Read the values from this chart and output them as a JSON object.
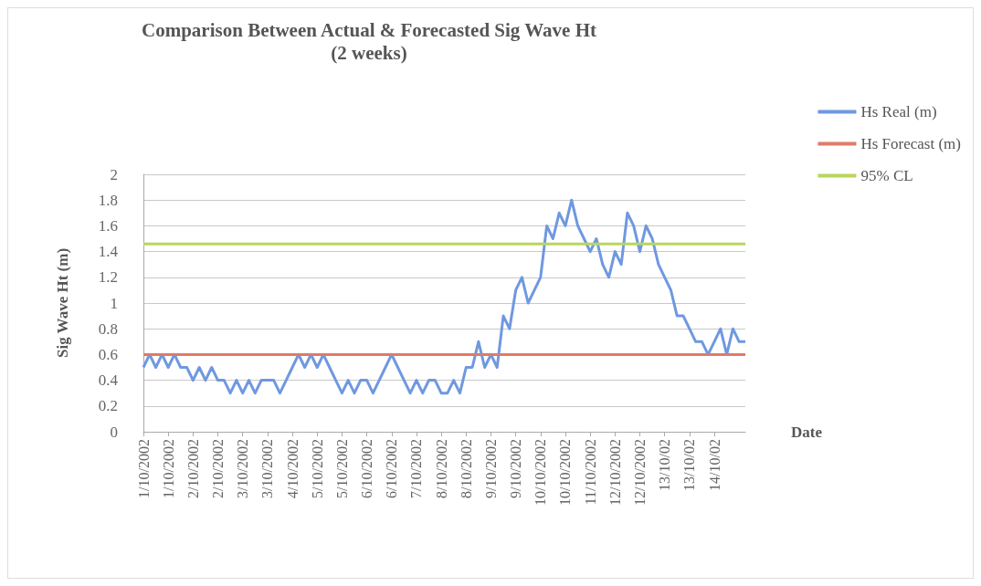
{
  "chart_data": {
    "type": "line",
    "title": "Comparison Between Actual & Forecasted Sig Wave Ht",
    "subtitle": "(2 weeks)",
    "xlabel": "Date",
    "ylabel": "Sig Wave Ht (m)",
    "categories": [
      "1/10/2002",
      null,
      null,
      null,
      "1/10/2002",
      null,
      null,
      null,
      "2/10/2002",
      null,
      null,
      null,
      "2/10/2002",
      null,
      null,
      null,
      "3/10/2002",
      null,
      null,
      null,
      "3/10/2002",
      null,
      null,
      null,
      "4/10/2002",
      null,
      null,
      null,
      "5/10/2002",
      null,
      null,
      null,
      "5/10/2002",
      null,
      null,
      null,
      "6/10/2002",
      null,
      null,
      null,
      "6/10/2002",
      null,
      null,
      null,
      "7/10/2002",
      null,
      null,
      null,
      "8/10/2002",
      null,
      null,
      null,
      "8/10/2002",
      null,
      null,
      null,
      "9/10/2002",
      null,
      null,
      null,
      "9/10/2002",
      null,
      null,
      null,
      "10/10/2002",
      null,
      null,
      null,
      "10/10/2002",
      null,
      null,
      null,
      "11/10/2002",
      null,
      null,
      null,
      "12/10/2002",
      null,
      null,
      null,
      "12/10/2002",
      null,
      null,
      null,
      "13/10/02",
      null,
      null,
      null,
      "13/10/02",
      null,
      null,
      null,
      "14/10/02",
      null,
      null,
      null,
      null,
      null
    ],
    "series": [
      {
        "name": "Hs Real (m)",
        "color": "#6f98e0",
        "values": [
          0.5,
          0.6,
          0.5,
          0.6,
          0.5,
          0.6,
          0.5,
          0.5,
          0.4,
          0.5,
          0.4,
          0.5,
          0.4,
          0.4,
          0.3,
          0.4,
          0.3,
          0.4,
          0.3,
          0.4,
          0.4,
          0.4,
          0.3,
          0.4,
          0.5,
          0.6,
          0.5,
          0.6,
          0.5,
          0.6,
          0.5,
          0.4,
          0.3,
          0.4,
          0.3,
          0.4,
          0.4,
          0.3,
          0.4,
          0.5,
          0.6,
          0.5,
          0.4,
          0.3,
          0.4,
          0.3,
          0.4,
          0.4,
          0.3,
          0.3,
          0.4,
          0.3,
          0.5,
          0.5,
          0.7,
          0.5,
          0.6,
          0.5,
          0.9,
          0.8,
          1.1,
          1.2,
          1.0,
          1.1,
          1.2,
          1.6,
          1.5,
          1.7,
          1.6,
          1.8,
          1.6,
          1.5,
          1.4,
          1.5,
          1.3,
          1.2,
          1.4,
          1.3,
          1.7,
          1.6,
          1.4,
          1.6,
          1.5,
          1.3,
          1.2,
          1.1,
          0.9,
          0.9,
          0.8,
          0.7,
          0.7,
          0.6,
          0.7,
          0.8,
          0.6,
          0.8,
          0.7,
          0.7
        ]
      },
      {
        "name": "Hs Forecast (m)",
        "color": "#e07a68",
        "values": [
          0.6,
          0.6,
          0.6,
          0.6,
          0.6,
          0.6,
          0.6,
          0.6,
          0.6,
          0.6,
          0.6,
          0.6,
          0.6,
          0.6,
          0.6,
          0.6,
          0.6,
          0.6,
          0.6,
          0.6,
          0.6,
          0.6,
          0.6,
          0.6,
          0.6,
          0.6,
          0.6,
          0.6,
          0.6,
          0.6,
          0.6,
          0.6,
          0.6,
          0.6,
          0.6,
          0.6,
          0.6,
          0.6,
          0.6,
          0.6,
          0.6,
          0.6,
          0.6,
          0.6,
          0.6,
          0.6,
          0.6,
          0.6,
          0.6,
          0.6,
          0.6,
          0.6,
          0.6,
          0.6,
          0.6,
          0.6,
          0.6,
          0.6,
          0.6,
          0.6,
          0.6,
          0.6,
          0.6,
          0.6,
          0.6,
          0.6,
          0.6,
          0.6,
          0.6,
          0.6,
          0.6,
          0.6,
          0.6,
          0.6,
          0.6,
          0.6,
          0.6,
          0.6,
          0.6,
          0.6,
          0.6,
          0.6,
          0.6,
          0.6,
          0.6,
          0.6,
          0.6,
          0.6,
          0.6,
          0.6,
          0.6,
          0.6,
          0.6,
          0.6,
          0.6,
          0.6,
          0.6,
          0.6
        ]
      },
      {
        "name": "95% CL",
        "color": "#b8d65c",
        "values": [
          1.46,
          1.46,
          1.46,
          1.46,
          1.46,
          1.46,
          1.46,
          1.46,
          1.46,
          1.46,
          1.46,
          1.46,
          1.46,
          1.46,
          1.46,
          1.46,
          1.46,
          1.46,
          1.46,
          1.46,
          1.46,
          1.46,
          1.46,
          1.46,
          1.46,
          1.46,
          1.46,
          1.46,
          1.46,
          1.46,
          1.46,
          1.46,
          1.46,
          1.46,
          1.46,
          1.46,
          1.46,
          1.46,
          1.46,
          1.46,
          1.46,
          1.46,
          1.46,
          1.46,
          1.46,
          1.46,
          1.46,
          1.46,
          1.46,
          1.46,
          1.46,
          1.46,
          1.46,
          1.46,
          1.46,
          1.46,
          1.46,
          1.46,
          1.46,
          1.46,
          1.46,
          1.46,
          1.46,
          1.46,
          1.46,
          1.46,
          1.46,
          1.46,
          1.46,
          1.46,
          1.46,
          1.46,
          1.46,
          1.46,
          1.46,
          1.46,
          1.46,
          1.46,
          1.46,
          1.46,
          1.46,
          1.46,
          1.46,
          1.46,
          1.46,
          1.46,
          1.46,
          1.46,
          1.46,
          1.46,
          1.46,
          1.46,
          1.46,
          1.46,
          1.46,
          1.46,
          1.46,
          1.46
        ]
      }
    ],
    "ylim": [
      0,
      2
    ],
    "yticks": [
      0,
      0.2,
      0.4,
      0.6,
      0.8,
      1,
      1.2,
      1.4,
      1.6,
      1.8,
      2
    ],
    "grid": "y",
    "legend": "right"
  }
}
